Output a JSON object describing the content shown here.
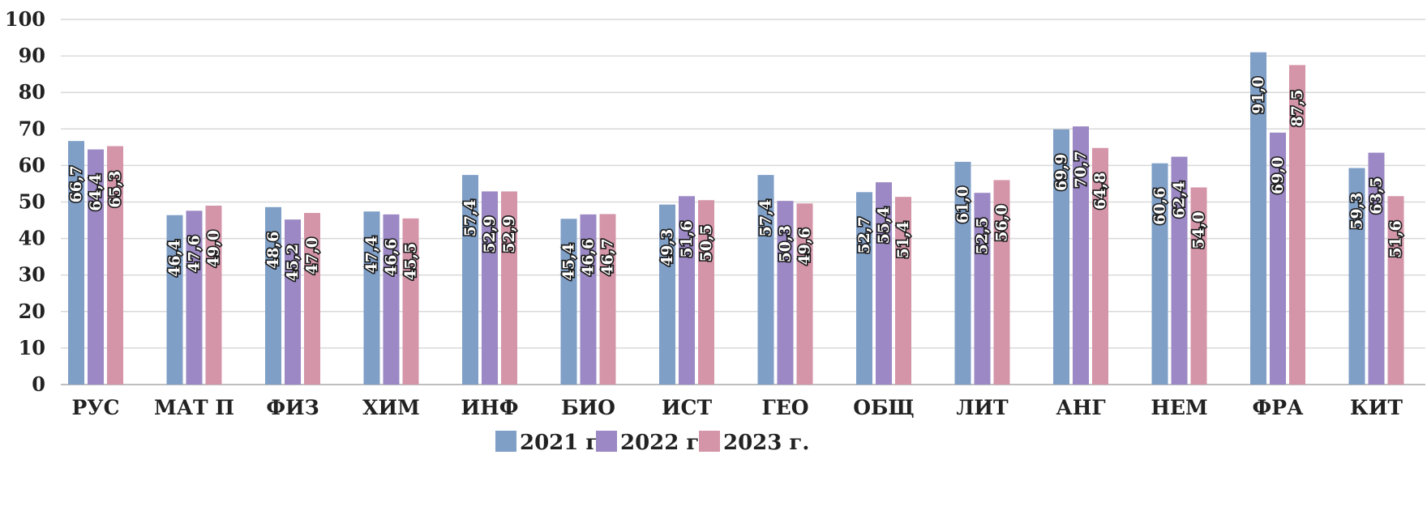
{
  "chart_data": {
    "type": "bar",
    "title": "",
    "xlabel": "",
    "ylabel": "",
    "ylim": [
      0,
      100
    ],
    "yticks": [
      0,
      10,
      20,
      30,
      40,
      50,
      60,
      70,
      80,
      90,
      100
    ],
    "grid": true,
    "legend_position": "bottom",
    "categories": [
      "РУС",
      "МАТ П",
      "ФИЗ",
      "ХИМ",
      "ИНФ",
      "БИО",
      "ИСТ",
      "ГЕО",
      "ОБЩ",
      "ЛИТ",
      "АНГ",
      "НЕМ",
      "ФРА",
      "КИТ"
    ],
    "series": [
      {
        "name": "2021 г.",
        "color": "#7f9fc7",
        "values": [
          66.7,
          46.4,
          48.6,
          47.4,
          57.4,
          45.4,
          49.3,
          57.4,
          52.7,
          61.0,
          69.9,
          60.6,
          91.0,
          59.3
        ],
        "labels": [
          "66,7",
          "46,4",
          "48,6",
          "47,4",
          "57,4",
          "45,4",
          "49,3",
          "57,4",
          "52,7",
          "61,0",
          "69,9",
          "60,6",
          "91,0",
          "59,3"
        ]
      },
      {
        "name": "2022 г.",
        "color": "#9b88c4",
        "values": [
          64.4,
          47.6,
          45.2,
          46.6,
          52.9,
          46.6,
          51.6,
          50.3,
          55.4,
          52.5,
          70.7,
          62.4,
          69.0,
          63.5
        ],
        "labels": [
          "64,4",
          "47,6",
          "45,2",
          "46,6",
          "52,9",
          "46,6",
          "51,6",
          "50,3",
          "55,4",
          "52,5",
          "70,7",
          "62,4",
          "69,0",
          "63,5"
        ]
      },
      {
        "name": "2023 г.",
        "color": "#d495a8",
        "values": [
          65.3,
          49.0,
          47.0,
          45.5,
          52.9,
          46.7,
          50.5,
          49.6,
          51.4,
          56.0,
          64.8,
          54.0,
          87.5,
          51.6
        ],
        "labels": [
          "65,3",
          "49,0",
          "47,0",
          "45,5",
          "52,9",
          "46,7",
          "50,5",
          "49,6",
          "51,4",
          "56,0",
          "64,8",
          "54,0",
          "87,5",
          "51,6"
        ]
      }
    ]
  }
}
